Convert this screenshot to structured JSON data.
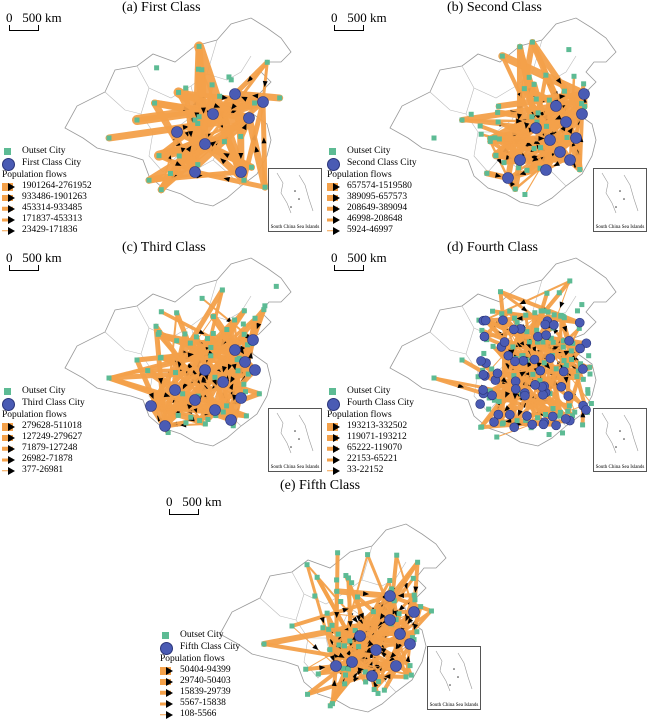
{
  "scale_label": "0   500 km",
  "inset_label": "South China Sea Islands",
  "legend_common": {
    "outset": "Outset City",
    "flows_title": "Population flows"
  },
  "colors": {
    "outset": "#5dbb94",
    "class_city": "#4a5bb4",
    "flow": "#f4a14a",
    "arrow": "#000000",
    "border": "#aaaaaa"
  },
  "panels": [
    {
      "title": "(a) First Class",
      "city_label": "First Class City",
      "flows": [
        "1901264-2761952",
        "933486-1901263",
        "453314-933485",
        "171837-453313",
        "23429-171836"
      ]
    },
    {
      "title": "(b) Second Class",
      "city_label": "Second Class City",
      "flows": [
        "657574-1519580",
        "389095-657573",
        "208649-389094",
        "46998-208648",
        "5924-46997"
      ]
    },
    {
      "title": "(c) Third Class",
      "city_label": "Third Class City",
      "flows": [
        "279628-511018",
        "127249-279627",
        "71879-127248",
        "26982-71878",
        "377-26981"
      ]
    },
    {
      "title": "(d) Fourth Class",
      "city_label": "Fourth Class City",
      "flows": [
        "193213-332502",
        "119071-193212",
        "65222-119070",
        "22153-65221",
        "33-22152"
      ]
    },
    {
      "title": "(e) Fifth Class",
      "city_label": "Fifth Class City",
      "flows": [
        "50404-94399",
        "29740-50403",
        "15839-29739",
        "5567-15838",
        "108-5566"
      ]
    }
  ]
}
